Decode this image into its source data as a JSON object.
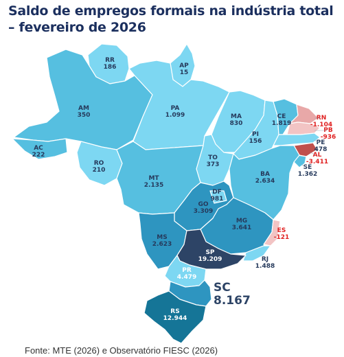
{
  "title": "Saldo de empregos formais na indústria total – fevereiro de 2026",
  "source": "Fonte: MTE (2026) e Observatório FIESC (2026)",
  "colors": {
    "light": "#7dd7f2",
    "medium": "#56bfe0",
    "dark": "#2e95c0",
    "darker": "#157597",
    "navy": "#2d4466",
    "negative_light": "#f2c4c4",
    "negative_mid": "#e8a8a8",
    "negative_strong": "#c0504d",
    "label_text": "#263a5c",
    "negative_text": "#e02020",
    "border": "#ffffff"
  },
  "states": {
    "RR": {
      "name": "RR",
      "value": "186"
    },
    "AP": {
      "name": "AP",
      "value": "15"
    },
    "AM": {
      "name": "AM",
      "value": "350"
    },
    "PA": {
      "name": "PA",
      "value": "1.099"
    },
    "MA": {
      "name": "MA",
      "value": "830"
    },
    "CE": {
      "name": "CE",
      "value": "1.819"
    },
    "RN": {
      "name": "RN",
      "value": "-1.104"
    },
    "PB": {
      "name": "PB",
      "value": "-936"
    },
    "PE": {
      "name": "PE",
      "value": "478"
    },
    "AL": {
      "name": "AL",
      "value": "-3.411"
    },
    "SE": {
      "name": "SE",
      "value": "1.362"
    },
    "PI": {
      "name": "PI",
      "value": "156"
    },
    "AC": {
      "name": "AC",
      "value": "222"
    },
    "RO": {
      "name": "RO",
      "value": "210"
    },
    "TO": {
      "name": "TO",
      "value": "373"
    },
    "BA": {
      "name": "BA",
      "value": "2.634"
    },
    "MT": {
      "name": "MT",
      "value": "2.135"
    },
    "DF": {
      "name": "DF",
      "value": "981"
    },
    "GO": {
      "name": "GO",
      "value": "3.309"
    },
    "MG": {
      "name": "MG",
      "value": "3.641"
    },
    "ES": {
      "name": "ES",
      "value": "-121"
    },
    "MS": {
      "name": "MS",
      "value": "2.623"
    },
    "SP": {
      "name": "SP",
      "value": "19.209"
    },
    "RJ": {
      "name": "RJ",
      "value": "1.488"
    },
    "PR": {
      "name": "PR",
      "value": "4.479"
    },
    "SC": {
      "name": "SC",
      "value": "8.167"
    },
    "RS": {
      "name": "RS",
      "value": "12.944"
    }
  }
}
